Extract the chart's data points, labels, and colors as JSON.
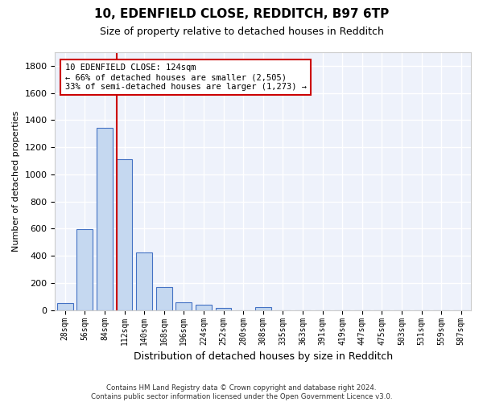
{
  "title_line1": "10, EDENFIELD CLOSE, REDDITCH, B97 6TP",
  "title_line2": "Size of property relative to detached houses in Redditch",
  "xlabel": "Distribution of detached houses by size in Redditch",
  "ylabel": "Number of detached properties",
  "bar_color": "#c5d8f0",
  "bar_edge_color": "#4472c4",
  "background_color": "#eef2fb",
  "grid_color": "#ffffff",
  "bins": [
    "28sqm",
    "56sqm",
    "84sqm",
    "112sqm",
    "140sqm",
    "168sqm",
    "196sqm",
    "224sqm",
    "252sqm",
    "280sqm",
    "308sqm",
    "335sqm",
    "363sqm",
    "391sqm",
    "419sqm",
    "447sqm",
    "475sqm",
    "503sqm",
    "531sqm",
    "559sqm",
    "587sqm"
  ],
  "values": [
    50,
    595,
    1345,
    1115,
    425,
    170,
    60,
    40,
    15,
    0,
    20,
    0,
    0,
    0,
    0,
    0,
    0,
    0,
    0,
    0,
    0
  ],
  "property_bin_index": 3,
  "vline_color": "#cc0000",
  "annotation_text": "10 EDENFIELD CLOSE: 124sqm\n← 66% of detached houses are smaller (2,505)\n33% of semi-detached houses are larger (1,273) →",
  "annotation_box_color": "#ffffff",
  "annotation_box_edge_color": "#cc0000",
  "footnote": "Contains HM Land Registry data © Crown copyright and database right 2024.\nContains public sector information licensed under the Open Government Licence v3.0.",
  "ylim": [
    0,
    1900
  ],
  "figsize": [
    6.0,
    5.0
  ],
  "dpi": 100
}
